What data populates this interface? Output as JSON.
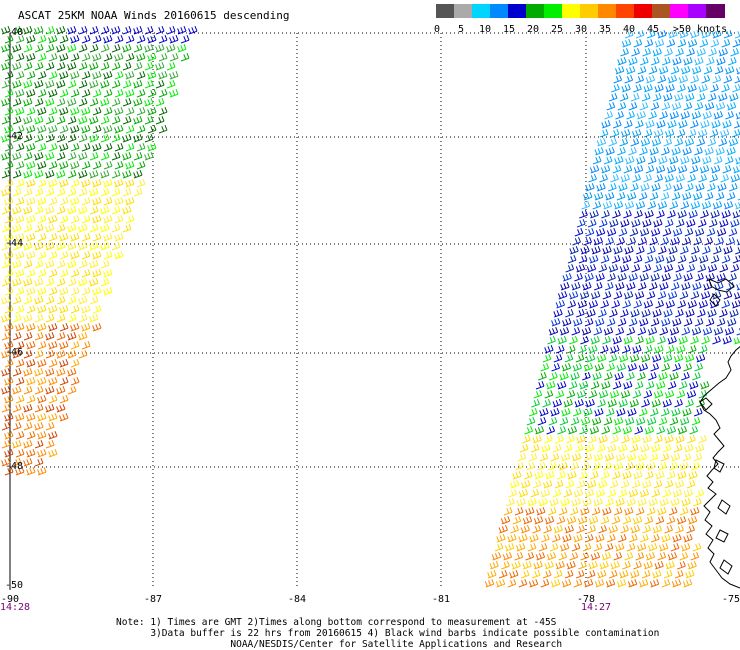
{
  "title": "ASCAT 25KM NOAA Winds 20160615 descending",
  "legend": {
    "unit": "knots",
    "colors": [
      "#555555",
      "#aaaaaa",
      "#00d5ff",
      "#0088ff",
      "#0000cc",
      "#00aa00",
      "#00ee00",
      "#ffff00",
      "#ffcc00",
      "#ff8800",
      "#ff4400",
      "#ee0000",
      "#aa5522",
      "#ff00ff",
      "#aa00ff",
      "#660066"
    ],
    "labels": [
      "0",
      "5",
      "10",
      "15",
      "20",
      "25",
      "30",
      "35",
      "40",
      "45",
      ">50"
    ]
  },
  "axes": {
    "lon_labels": [
      "-90",
      "-87",
      "-84",
      "-81",
      "-78",
      "-75"
    ],
    "lat_labels": [
      "-40",
      "-42",
      "-44",
      "-46",
      "-48",
      "-50"
    ]
  },
  "swath_times": [
    "14:28",
    "14:27"
  ],
  "notes": [
    "Note: 1) Times are GMT 2)Times along bottom correspond to measurement at -45S",
    "      3)Data buffer is 22 hrs from 20160615 4) Black wind barbs indicate possible contamination",
    "                    NOAA/NESDIS/Center for Satellite Applications and Research"
  ]
}
